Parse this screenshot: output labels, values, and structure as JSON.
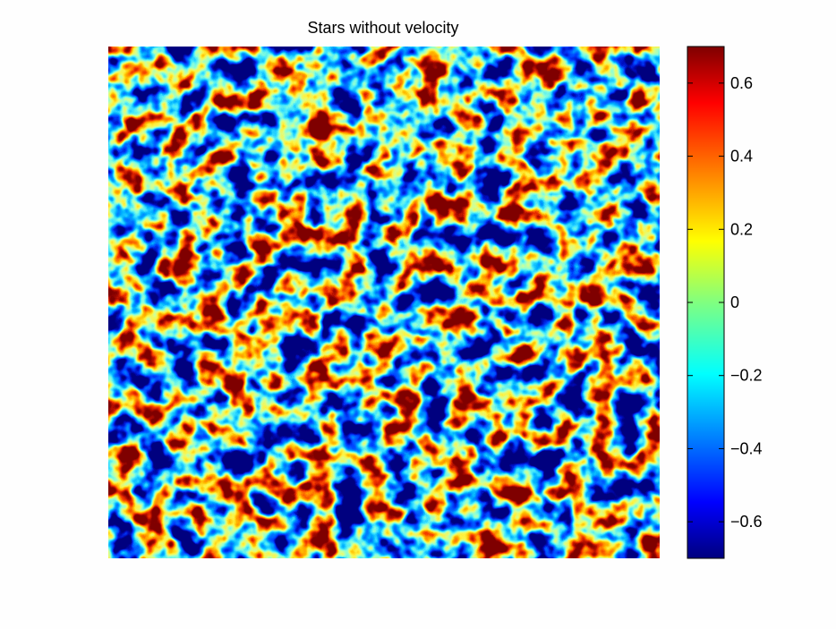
{
  "chart_data": {
    "type": "heatmap",
    "title": "Stars without velocity",
    "xlabel": "",
    "ylabel": "",
    "colormap": "jet",
    "grid": false,
    "axes_visible": false,
    "colorbar": {
      "placement": "right",
      "range": [
        -0.7,
        0.7
      ],
      "ticks": [
        -0.6,
        -0.4,
        -0.2,
        0,
        0.2,
        0.4,
        0.6
      ],
      "tick_labels": [
        "−0.6",
        "−0.4",
        "−0.2",
        "0",
        "0.2",
        "0.4",
        "0.6"
      ]
    },
    "field_description": "random speckled field of values between about -0.7 and 0.7, mostly blue/cyan with scattered yellow and red peaks"
  }
}
